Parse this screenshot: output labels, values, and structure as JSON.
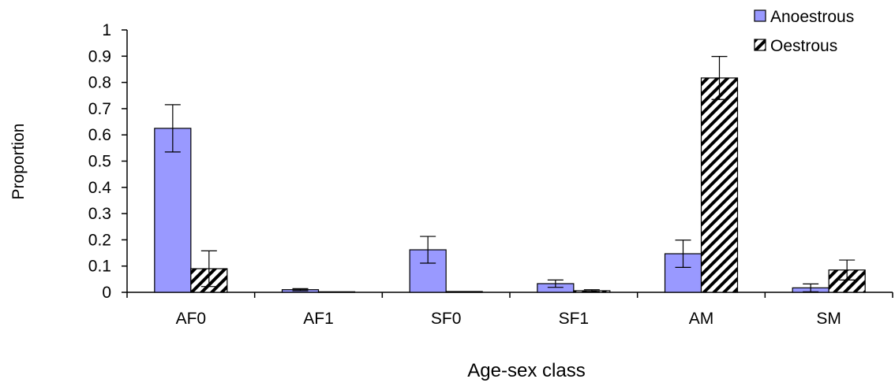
{
  "chart_data": {
    "type": "bar",
    "title": "",
    "xlabel": "Age-sex class",
    "ylabel": "Proportion",
    "categories": [
      "AF0",
      "AF1",
      "SF0",
      "SF1",
      "AM",
      "SM"
    ],
    "ylim": [
      0,
      1
    ],
    "yticks": [
      "0",
      "0.1",
      "0.2",
      "0.3",
      "0.4",
      "0.5",
      "0.6",
      "0.7",
      "0.8",
      "0.9",
      "1"
    ],
    "grid": false,
    "legend_position": "top-right",
    "series": [
      {
        "name": "Anoestrous",
        "fill": "pattern-solid",
        "color": "#9999ff",
        "values": [
          0.625,
          0.01,
          0.162,
          0.033,
          0.147,
          0.017
        ],
        "errors": [
          0.09,
          0.004,
          0.051,
          0.014,
          0.052,
          0.015
        ]
      },
      {
        "name": "Oestrous",
        "fill": "pattern-diagonal-hatch",
        "color": "#000000",
        "values": [
          0.09,
          0.002,
          0.003,
          0.006,
          0.817,
          0.085
        ],
        "errors": [
          0.068,
          0.0,
          0.0,
          0.004,
          0.082,
          0.038
        ]
      }
    ]
  }
}
